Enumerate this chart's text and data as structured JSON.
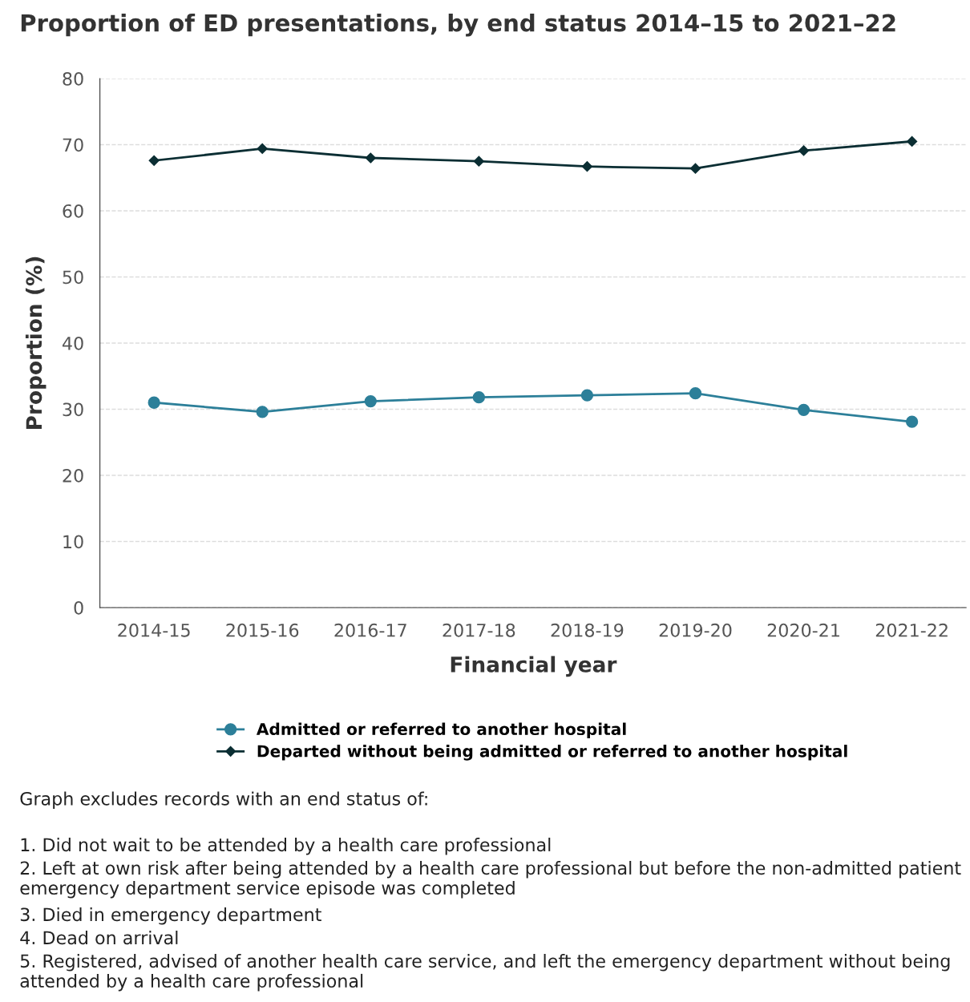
{
  "chart_data": {
    "type": "line",
    "title": "Proportion of ED presentations, by end status 2014–15 to 2021–22",
    "xlabel": "Financial year",
    "ylabel": "Proportion (%)",
    "categories": [
      "2014-15",
      "2015-16",
      "2016-17",
      "2017-18",
      "2018-19",
      "2019-20",
      "2020-21",
      "2021-22"
    ],
    "series": [
      {
        "name": "Admitted or referred to another hospital",
        "color": "#2c7f99",
        "marker": "circle",
        "values": [
          31.0,
          29.6,
          31.2,
          31.8,
          32.1,
          32.4,
          29.9,
          28.1
        ]
      },
      {
        "name": "Departed without being admitted or referred to another hospital",
        "color": "#0b2e33",
        "marker": "diamond",
        "values": [
          67.6,
          69.4,
          68.0,
          67.5,
          66.7,
          66.4,
          69.1,
          70.5
        ]
      }
    ],
    "ylim": [
      0,
      80
    ],
    "yticks": [
      0,
      10,
      20,
      30,
      40,
      50,
      60,
      70,
      80
    ],
    "grid": "y",
    "legend": "bottom",
    "line_style": "solid",
    "annotations": [
      "Graph excludes records with an end status of:",
      "1. Did not wait to be attended by a health care professional",
      "2. Left at own risk after being attended by a health care professional but before the non-admitted patient emergency department service episode was completed",
      "3. Died in emergency department",
      "4. Dead on arrival",
      "5. Registered, advised of another health care service, and left the emergency department without being attended by a health care professional"
    ]
  }
}
